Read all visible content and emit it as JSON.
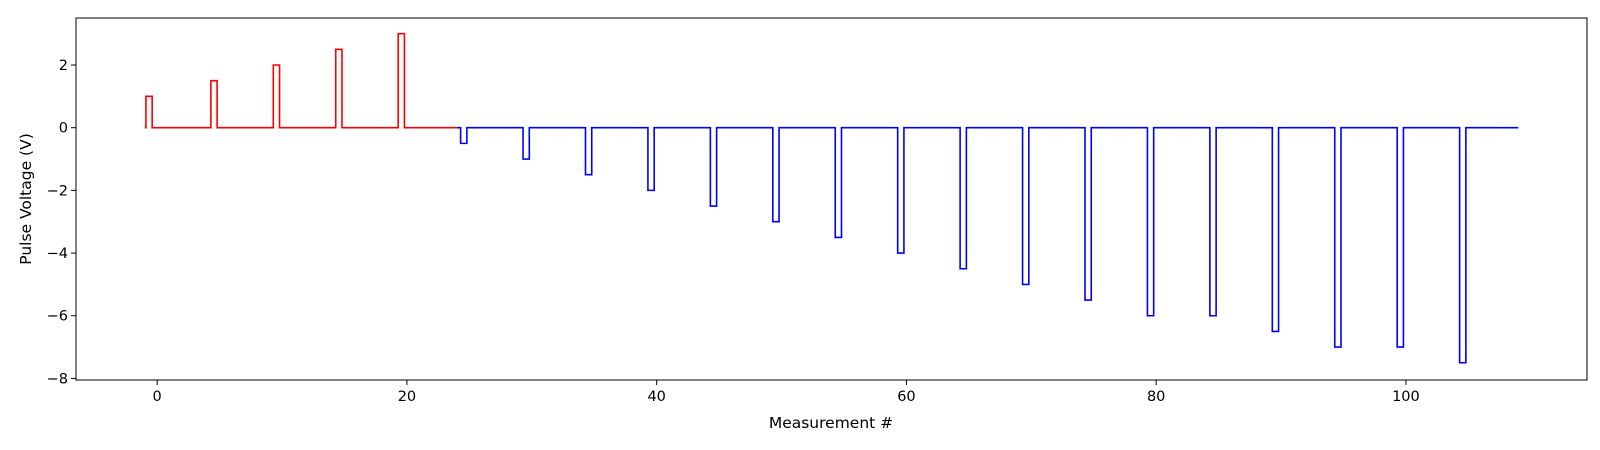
{
  "chart_data": {
    "type": "line",
    "title": "",
    "xlabel": "Measurement #",
    "ylabel": "Pulse Voltage (V)",
    "xlim": [
      -6.5,
      114.5
    ],
    "ylim": [
      -8.05,
      3.5
    ],
    "x_ticks": [
      0,
      20,
      40,
      60,
      80,
      100
    ],
    "y_ticks": [
      2,
      0,
      -2,
      -4,
      -6,
      -8
    ],
    "x_tick_labels": [
      "0",
      "20",
      "40",
      "60",
      "80",
      "100"
    ],
    "y_tick_labels": [
      "2",
      "0",
      "−2",
      "−4",
      "−6",
      "−8"
    ],
    "grid": false,
    "legend": "none",
    "series": [
      {
        "color": "#ff0000",
        "pulse_width": 0.5,
        "start_x": -1,
        "end_x": 24,
        "pulse_start_x": [
          -0.9,
          4.3,
          9.3,
          14.3,
          19.3
        ],
        "pulse_values": [
          1.0,
          1.5,
          2.0,
          2.5,
          3.0
        ]
      },
      {
        "color": "#0000ff",
        "pulse_width": 0.5,
        "start_x": 24,
        "end_x": 109,
        "pulse_start_x": [
          24.3,
          29.3,
          34.3,
          39.3,
          44.3,
          49.3,
          54.3,
          59.3,
          64.3,
          69.3,
          74.3,
          79.3,
          84.3,
          89.3,
          94.3,
          99.3,
          104.3
        ],
        "pulse_values": [
          -0.5,
          -1.0,
          -1.5,
          -2.0,
          -2.5,
          -3.0,
          -3.5,
          -4.0,
          -4.5,
          -5.0,
          -5.5,
          -6.0,
          -6.0,
          -6.5,
          -7.0,
          -7.0,
          -7.5
        ]
      }
    ]
  }
}
